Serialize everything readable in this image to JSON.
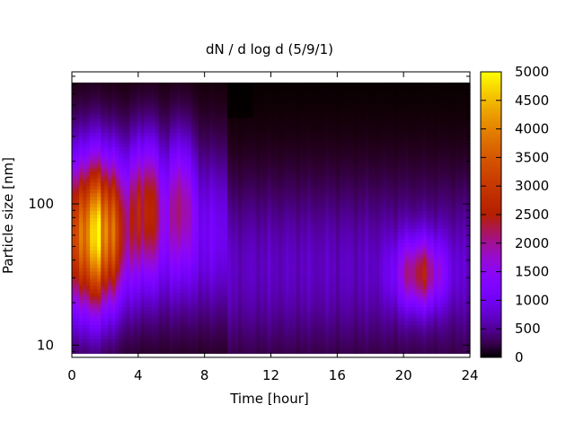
{
  "chart_data": {
    "type": "heatmap",
    "title": "dN / d log d (5/9/1)",
    "xlabel": "Time [hour]",
    "ylabel": "Particle size [nm]",
    "xlim": [
      0,
      24
    ],
    "ylim": [
      8.2,
      860
    ],
    "y_scale": "log",
    "x_ticks": [
      0,
      4,
      8,
      12,
      16,
      20,
      24
    ],
    "y_ticks": [
      10,
      100
    ],
    "colorbar": {
      "range": [
        0,
        5000
      ],
      "ticks": [
        0,
        500,
        1000,
        1500,
        2000,
        2500,
        3000,
        3500,
        4000,
        4500,
        5000
      ],
      "colormap": "gnuplot (black-purple-red-orange-yellow)"
    },
    "blobs": [
      {
        "x": 1.0,
        "diameter_nm": 60,
        "value": 4300,
        "x_spread_h": 0.9,
        "log_spread": 0.38
      },
      {
        "x": 2.3,
        "diameter_nm": 65,
        "value": 3000,
        "x_spread_h": 0.8,
        "log_spread": 0.35
      },
      {
        "x": 4.5,
        "diameter_nm": 100,
        "value": 3000,
        "x_spread_h": 0.7,
        "log_spread": 0.33
      },
      {
        "x": 6.6,
        "diameter_nm": 110,
        "value": 2400,
        "x_spread_h": 0.5,
        "log_spread": 0.33
      },
      {
        "x": 21.0,
        "diameter_nm": 32,
        "value": 2900,
        "x_spread_h": 1.0,
        "log_spread": 0.17
      }
    ]
  }
}
